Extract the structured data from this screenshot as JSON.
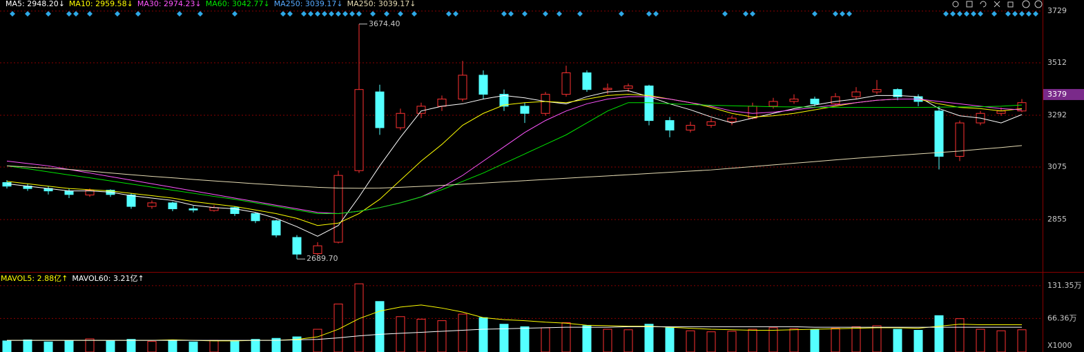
{
  "chart_data": [
    {
      "type": "candlestick",
      "up_color": "#ff3232",
      "down_color": "#54ffff",
      "ylim": [
        2647,
        3752
      ],
      "yticks": [
        3729,
        3512,
        3292,
        3075,
        2855
      ],
      "grid": true,
      "last_price": 3379,
      "annotations": [
        {
          "value": 3674.4,
          "label": "3674.40"
        },
        {
          "value": 2689.7,
          "label": "2689.70"
        }
      ],
      "ohlc": [
        [
          3010,
          3020,
          2985,
          2995
        ],
        [
          2995,
          3005,
          2975,
          2985
        ],
        [
          2985,
          2995,
          2960,
          2975
        ],
        [
          2975,
          2985,
          2945,
          2960
        ],
        [
          2958,
          2985,
          2950,
          2978
        ],
        [
          2978,
          2982,
          2950,
          2960
        ],
        [
          2958,
          2965,
          2900,
          2910
        ],
        [
          2910,
          2935,
          2900,
          2925
        ],
        [
          2925,
          2930,
          2890,
          2900
        ],
        [
          2900,
          2912,
          2885,
          2895
        ],
        [
          2893,
          2915,
          2888,
          2905
        ],
        [
          2905,
          2910,
          2870,
          2880
        ],
        [
          2880,
          2885,
          2840,
          2850
        ],
        [
          2850,
          2855,
          2780,
          2790
        ],
        [
          2780,
          2790,
          2689.7,
          2710
        ],
        [
          2712,
          2760,
          2705,
          2745
        ],
        [
          2760,
          3060,
          2755,
          3040
        ],
        [
          3060,
          3674.4,
          3050,
          3400
        ],
        [
          3390,
          3420,
          3210,
          3240
        ],
        [
          3240,
          3320,
          3230,
          3300
        ],
        [
          3300,
          3345,
          3280,
          3330
        ],
        [
          3330,
          3375,
          3310,
          3360
        ],
        [
          3360,
          3520,
          3350,
          3460
        ],
        [
          3460,
          3480,
          3360,
          3380
        ],
        [
          3380,
          3400,
          3310,
          3330
        ],
        [
          3330,
          3345,
          3260,
          3300
        ],
        [
          3300,
          3390,
          3290,
          3380
        ],
        [
          3380,
          3500,
          3370,
          3470
        ],
        [
          3470,
          3480,
          3390,
          3400
        ],
        [
          3400,
          3425,
          3380,
          3405
        ],
        [
          3405,
          3425,
          3390,
          3415
        ],
        [
          3415,
          3420,
          3250,
          3270
        ],
        [
          3270,
          3285,
          3200,
          3230
        ],
        [
          3230,
          3265,
          3220,
          3250
        ],
        [
          3250,
          3280,
          3240,
          3265
        ],
        [
          3265,
          3290,
          3250,
          3280
        ],
        [
          3280,
          3345,
          3275,
          3330
        ],
        [
          3330,
          3365,
          3320,
          3350
        ],
        [
          3350,
          3380,
          3340,
          3360
        ],
        [
          3360,
          3370,
          3330,
          3340
        ],
        [
          3340,
          3385,
          3335,
          3370
        ],
        [
          3370,
          3410,
          3360,
          3390
        ],
        [
          3390,
          3440,
          3380,
          3400
        ],
        [
          3400,
          3405,
          3355,
          3370
        ],
        [
          3370,
          3380,
          3330,
          3350
        ],
        [
          3310,
          3330,
          3065,
          3120
        ],
        [
          3120,
          3270,
          3100,
          3260
        ],
        [
          3260,
          3310,
          3250,
          3300
        ],
        [
          3300,
          3325,
          3290,
          3310
        ],
        [
          3310,
          3360,
          3305,
          3345
        ]
      ],
      "series": [
        {
          "name": "MA5: 2948.20↓",
          "color": "#ffffff",
          "values": [
            3005,
            2995,
            2985,
            2975,
            2975,
            2970,
            2955,
            2945,
            2935,
            2915,
            2905,
            2900,
            2885,
            2860,
            2825,
            2785,
            2830,
            2950,
            3080,
            3200,
            3310,
            3330,
            3340,
            3360,
            3375,
            3365,
            3350,
            3340,
            3370,
            3390,
            3395,
            3370,
            3340,
            3315,
            3285,
            3260,
            3280,
            3300,
            3320,
            3335,
            3350,
            3360,
            3375,
            3375,
            3370,
            3320,
            3290,
            3280,
            3260,
            3295
          ]
        },
        {
          "name": "MA10: 2959.58↓",
          "color": "#ffff00",
          "values": [
            3015,
            3005,
            2995,
            2985,
            2980,
            2975,
            2965,
            2955,
            2945,
            2930,
            2920,
            2910,
            2895,
            2880,
            2860,
            2830,
            2840,
            2880,
            2940,
            3020,
            3100,
            3170,
            3250,
            3300,
            3335,
            3345,
            3350,
            3345,
            3360,
            3375,
            3380,
            3375,
            3360,
            3345,
            3325,
            3300,
            3285,
            3290,
            3300,
            3315,
            3330,
            3345,
            3355,
            3360,
            3360,
            3340,
            3325,
            3320,
            3310,
            3320
          ]
        },
        {
          "name": "MA30: 2974.23↓",
          "color": "#ff55ff",
          "values": [
            3100,
            3090,
            3080,
            3065,
            3050,
            3035,
            3020,
            3005,
            2990,
            2975,
            2960,
            2945,
            2930,
            2915,
            2900,
            2885,
            2880,
            2890,
            2905,
            2925,
            2950,
            2990,
            3040,
            3100,
            3160,
            3220,
            3270,
            3310,
            3340,
            3360,
            3370,
            3370,
            3360,
            3345,
            3330,
            3310,
            3300,
            3305,
            3315,
            3325,
            3335,
            3345,
            3355,
            3360,
            3360,
            3350,
            3340,
            3330,
            3320,
            3315
          ]
        },
        {
          "name": "MA60: 3042.77↓",
          "color": "#00e600",
          "values": [
            3080,
            3068,
            3055,
            3042,
            3030,
            3017,
            3004,
            2991,
            2978,
            2965,
            2952,
            2940,
            2925,
            2910,
            2895,
            2880,
            2880,
            2890,
            2905,
            2925,
            2950,
            2980,
            3015,
            3050,
            3090,
            3130,
            3170,
            3210,
            3260,
            3310,
            3345,
            3345,
            3340,
            3337,
            3334,
            3332,
            3330,
            3328,
            3327,
            3326,
            3325,
            3325,
            3325,
            3325,
            3325,
            3326,
            3327,
            3328,
            3330,
            3335
          ]
        },
        {
          "name": "MA250: 3039.17↓",
          "color": "#55aaff",
          "values": null
        },
        {
          "name": "MA250: 3039.17↓",
          "color": "#e6dcb4",
          "values": [
            3080,
            3075,
            3070,
            3065,
            3058,
            3050,
            3043,
            3036,
            3030,
            3023,
            3017,
            3011,
            3005,
            3000,
            2995,
            2990,
            2987,
            2986,
            2987,
            2990,
            2994,
            2998,
            3003,
            3008,
            3013,
            3018,
            3023,
            3028,
            3033,
            3038,
            3043,
            3048,
            3053,
            3058,
            3063,
            3070,
            3077,
            3084,
            3091,
            3098,
            3105,
            3112,
            3118,
            3124,
            3130,
            3136,
            3142,
            3150,
            3157,
            3165
          ]
        }
      ]
    },
    {
      "type": "bar",
      "ylim": [
        0,
        153
      ],
      "yticks": [
        {
          "value": 131.35,
          "label": "131.35万"
        },
        {
          "value": 66.36,
          "label": "66.36万"
        }
      ],
      "grid": true,
      "unit_label": "X1000",
      "values": [
        22,
        24,
        20,
        23,
        26,
        22,
        25,
        21,
        24,
        20,
        23,
        22,
        25,
        27,
        30,
        45,
        95,
        135,
        100,
        70,
        65,
        62,
        75,
        68,
        55,
        50,
        48,
        58,
        52,
        45,
        44,
        55,
        48,
        42,
        40,
        41,
        45,
        48,
        46,
        44,
        47,
        50,
        52,
        45,
        43,
        72,
        66,
        45,
        42,
        44
      ],
      "series": [
        {
          "name": "MAVOL5: 2.88亿↑",
          "color": "#ffff00",
          "values": [
            23,
            23,
            23,
            23,
            23,
            23,
            23,
            23,
            24,
            23,
            22,
            22,
            23,
            23,
            25,
            30,
            45,
            66,
            81,
            89,
            93,
            87,
            79,
            68,
            64,
            62,
            59,
            57,
            53,
            52,
            51,
            51,
            49,
            47,
            45,
            44,
            43,
            43,
            44,
            45,
            46,
            47,
            48,
            48,
            47,
            51,
            55,
            54,
            54,
            54
          ]
        },
        {
          "name": "MAVOL60: 3.21亿↑",
          "color": "#ffffff",
          "values": [
            23,
            23,
            23,
            23,
            23,
            23,
            23,
            23,
            23,
            23,
            23,
            23,
            23,
            23,
            24,
            25,
            28,
            32,
            35,
            37,
            39,
            41,
            43,
            45,
            46,
            47,
            48,
            49,
            49,
            49,
            50,
            50,
            50,
            50,
            50,
            50,
            50,
            50,
            50,
            49,
            49,
            49,
            49,
            49,
            49,
            49,
            49,
            49,
            49,
            49
          ]
        }
      ]
    }
  ]
}
